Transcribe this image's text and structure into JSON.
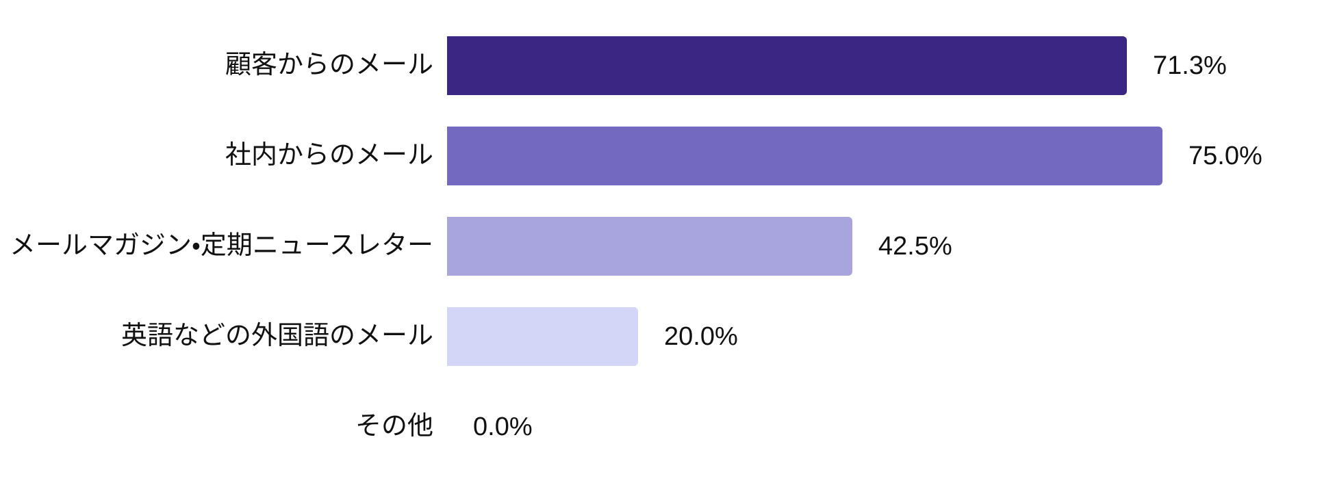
{
  "chart_data": {
    "type": "bar",
    "orientation": "horizontal",
    "title": "",
    "xlabel": "",
    "ylabel": "",
    "grid": false,
    "legend": false,
    "xlim": [
      0,
      100
    ],
    "value_suffix": "%",
    "background_color": "#ffffff",
    "text_color": "#111111",
    "categories": [
      "顧客からのメール",
      "社内からのメール",
      "メールマガジン・定期ニュースレター",
      "英語などの外国語のメール",
      "その他"
    ],
    "values": [
      71.3,
      75.0,
      42.5,
      20.0,
      0.0
    ],
    "value_labels": [
      "71.3%",
      "75.0%",
      "42.5%",
      "20.0%",
      "0.0%"
    ],
    "bar_colors": [
      "#3C2684",
      "#7469C0",
      "#A8A5DE",
      "#D4D6F8",
      "#D4D6F8"
    ]
  }
}
